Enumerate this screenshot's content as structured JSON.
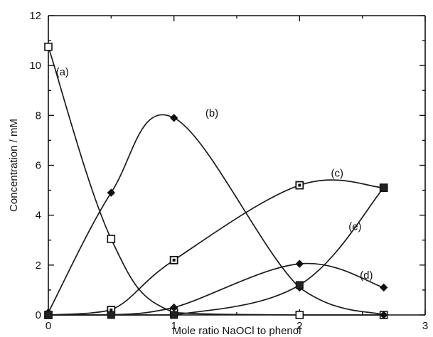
{
  "chart_data": {
    "type": "line",
    "title": "",
    "xlabel": "Mole ratio NaOCl to phenol",
    "ylabel": "Concentration / mM",
    "xlim": [
      0,
      3
    ],
    "ylim": [
      0,
      12
    ],
    "x_ticks": [
      "0",
      "1",
      "2",
      "3"
    ],
    "y_ticks": [
      "0",
      "2",
      "4",
      "6",
      "8",
      "10",
      "12"
    ],
    "grid": false,
    "legend": "none",
    "series": [
      {
        "name": "(a)",
        "marker": "open-square",
        "x": [
          0,
          0.5,
          1,
          2,
          2.67
        ],
        "y": [
          10.75,
          3.05,
          0.1,
          0.0,
          0.0
        ]
      },
      {
        "name": "(b)",
        "marker": "filled-diamond",
        "x": [
          0,
          0.5,
          1,
          2,
          2.67
        ],
        "y": [
          0.1,
          4.9,
          7.9,
          1.1,
          0.0
        ]
      },
      {
        "name": "(c)",
        "marker": "dotted-square",
        "x": [
          0,
          0.5,
          1,
          2,
          2.67
        ],
        "y": [
          0.0,
          0.2,
          2.2,
          5.2,
          5.1
        ]
      },
      {
        "name": "(d)",
        "marker": "filled-diamond",
        "x": [
          0,
          0.5,
          1,
          2,
          2.67
        ],
        "y": [
          0.0,
          0.0,
          0.3,
          2.05,
          1.1
        ]
      },
      {
        "name": "(e)",
        "marker": "filled-square",
        "x": [
          0,
          0.5,
          1,
          2,
          2.67
        ],
        "y": [
          0.0,
          0.0,
          0.0,
          1.2,
          5.1
        ]
      }
    ]
  }
}
